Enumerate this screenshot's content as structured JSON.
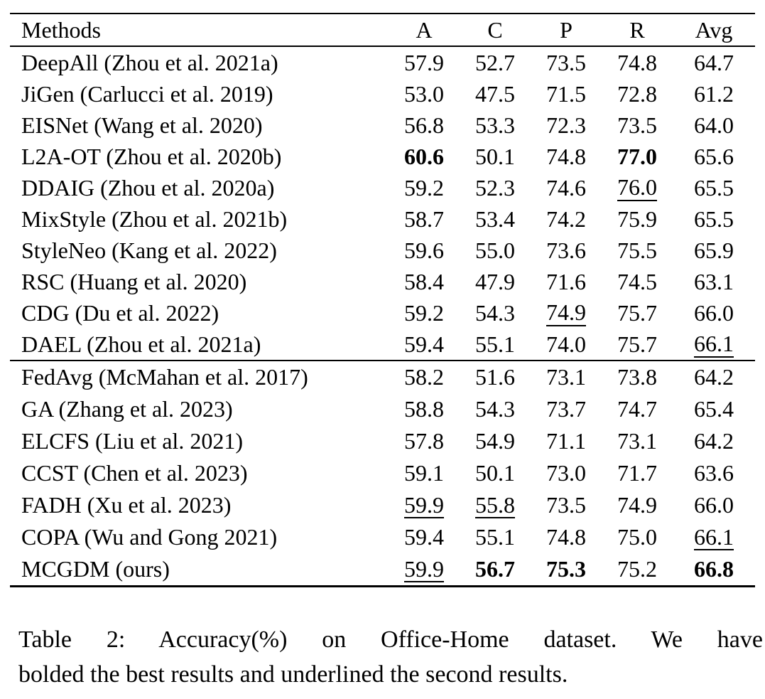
{
  "page": {
    "background": "#ffffff",
    "text_color": "#000000"
  },
  "table": {
    "columns": [
      "Methods",
      "A",
      "C",
      "P",
      "R",
      "Avg"
    ],
    "groups": [
      {
        "rows": [
          {
            "method": "DeepAll (Zhou et al. 2021a)",
            "cells": [
              {
                "text": "57.9",
                "style": "normal"
              },
              {
                "text": "52.7",
                "style": "normal"
              },
              {
                "text": "73.5",
                "style": "normal"
              },
              {
                "text": "74.8",
                "style": "normal"
              },
              {
                "text": "64.7",
                "style": "normal"
              }
            ]
          },
          {
            "method": "JiGen (Carlucci et al. 2019)",
            "cells": [
              {
                "text": "53.0",
                "style": "normal"
              },
              {
                "text": "47.5",
                "style": "normal"
              },
              {
                "text": "71.5",
                "style": "normal"
              },
              {
                "text": "72.8",
                "style": "normal"
              },
              {
                "text": "61.2",
                "style": "normal"
              }
            ]
          },
          {
            "method": "EISNet (Wang et al. 2020)",
            "cells": [
              {
                "text": "56.8",
                "style": "normal"
              },
              {
                "text": "53.3",
                "style": "normal"
              },
              {
                "text": "72.3",
                "style": "normal"
              },
              {
                "text": "73.5",
                "style": "normal"
              },
              {
                "text": "64.0",
                "style": "normal"
              }
            ]
          },
          {
            "method": "L2A-OT (Zhou et al. 2020b)",
            "cells": [
              {
                "text": "60.6",
                "style": "bold"
              },
              {
                "text": "50.1",
                "style": "normal"
              },
              {
                "text": "74.8",
                "style": "normal"
              },
              {
                "text": "77.0",
                "style": "bold"
              },
              {
                "text": "65.6",
                "style": "normal"
              }
            ]
          },
          {
            "method": "DDAIG (Zhou et al. 2020a)",
            "cells": [
              {
                "text": "59.2",
                "style": "normal"
              },
              {
                "text": "52.3",
                "style": "normal"
              },
              {
                "text": "74.6",
                "style": "normal"
              },
              {
                "text": "76.0",
                "style": "underline"
              },
              {
                "text": "65.5",
                "style": "normal"
              }
            ]
          },
          {
            "method": "MixStyle (Zhou et al. 2021b)",
            "cells": [
              {
                "text": "58.7",
                "style": "normal"
              },
              {
                "text": "53.4",
                "style": "normal"
              },
              {
                "text": "74.2",
                "style": "normal"
              },
              {
                "text": "75.9",
                "style": "normal"
              },
              {
                "text": "65.5",
                "style": "normal"
              }
            ]
          },
          {
            "method": "StyleNeo (Kang et al. 2022)",
            "cells": [
              {
                "text": "59.6",
                "style": "normal"
              },
              {
                "text": "55.0",
                "style": "normal"
              },
              {
                "text": "73.6",
                "style": "normal"
              },
              {
                "text": "75.5",
                "style": "normal"
              },
              {
                "text": "65.9",
                "style": "normal"
              }
            ]
          },
          {
            "method": "RSC (Huang et al. 2020)",
            "cells": [
              {
                "text": "58.4",
                "style": "normal"
              },
              {
                "text": "47.9",
                "style": "normal"
              },
              {
                "text": "71.6",
                "style": "normal"
              },
              {
                "text": "74.5",
                "style": "normal"
              },
              {
                "text": "63.1",
                "style": "normal"
              }
            ]
          },
          {
            "method": "CDG (Du et al. 2022)",
            "cells": [
              {
                "text": "59.2",
                "style": "normal"
              },
              {
                "text": "54.3",
                "style": "normal"
              },
              {
                "text": "74.9",
                "style": "underline"
              },
              {
                "text": "75.7",
                "style": "normal"
              },
              {
                "text": "66.0",
                "style": "normal"
              }
            ]
          },
          {
            "method": "DAEL (Zhou et al. 2021a)",
            "cells": [
              {
                "text": "59.4",
                "style": "normal"
              },
              {
                "text": "55.1",
                "style": "normal"
              },
              {
                "text": "74.0",
                "style": "normal"
              },
              {
                "text": "75.7",
                "style": "normal"
              },
              {
                "text": "66.1",
                "style": "underline"
              }
            ]
          }
        ]
      },
      {
        "rows": [
          {
            "method": "FedAvg (McMahan et al. 2017)",
            "cells": [
              {
                "text": "58.2",
                "style": "normal"
              },
              {
                "text": "51.6",
                "style": "normal"
              },
              {
                "text": "73.1",
                "style": "normal"
              },
              {
                "text": "73.8",
                "style": "normal"
              },
              {
                "text": "64.2",
                "style": "normal"
              }
            ]
          },
          {
            "method": "GA (Zhang et al. 2023)",
            "cells": [
              {
                "text": "58.8",
                "style": "normal"
              },
              {
                "text": "54.3",
                "style": "normal"
              },
              {
                "text": "73.7",
                "style": "normal"
              },
              {
                "text": "74.7",
                "style": "normal"
              },
              {
                "text": "65.4",
                "style": "normal"
              }
            ]
          },
          {
            "method": "ELCFS (Liu et al. 2021)",
            "cells": [
              {
                "text": "57.8",
                "style": "normal"
              },
              {
                "text": "54.9",
                "style": "normal"
              },
              {
                "text": "71.1",
                "style": "normal"
              },
              {
                "text": "73.1",
                "style": "normal"
              },
              {
                "text": "64.2",
                "style": "normal"
              }
            ]
          },
          {
            "method": "CCST (Chen et al. 2023)",
            "cells": [
              {
                "text": "59.1",
                "style": "normal"
              },
              {
                "text": "50.1",
                "style": "normal"
              },
              {
                "text": "73.0",
                "style": "normal"
              },
              {
                "text": "71.7",
                "style": "normal"
              },
              {
                "text": "63.6",
                "style": "normal"
              }
            ]
          },
          {
            "method": "FADH (Xu et al. 2023)",
            "cells": [
              {
                "text": "59.9",
                "style": "underline"
              },
              {
                "text": "55.8",
                "style": "underline"
              },
              {
                "text": "73.5",
                "style": "normal"
              },
              {
                "text": "74.9",
                "style": "normal"
              },
              {
                "text": "66.0",
                "style": "normal"
              }
            ]
          },
          {
            "method": "COPA (Wu and Gong 2021)",
            "cells": [
              {
                "text": "59.4",
                "style": "normal"
              },
              {
                "text": "55.1",
                "style": "normal"
              },
              {
                "text": "74.8",
                "style": "normal"
              },
              {
                "text": "75.0",
                "style": "normal"
              },
              {
                "text": "66.1",
                "style": "underline"
              }
            ]
          },
          {
            "method": "MCGDM (ours)",
            "cells": [
              {
                "text": "59.9",
                "style": "underline"
              },
              {
                "text": "56.7",
                "style": "bold"
              },
              {
                "text": "75.3",
                "style": "bold"
              },
              {
                "text": "75.2",
                "style": "normal"
              },
              {
                "text": "66.8",
                "style": "bold"
              }
            ]
          }
        ]
      }
    ]
  },
  "caption": {
    "line1": "Table 2: Accuracy(%) on Office-Home dataset. We have",
    "line2": "bolded the best results and underlined the second results.",
    "full": "Table 2: Accuracy(%) on Office-Home dataset. We have bolded the best results and underlined the second results."
  }
}
